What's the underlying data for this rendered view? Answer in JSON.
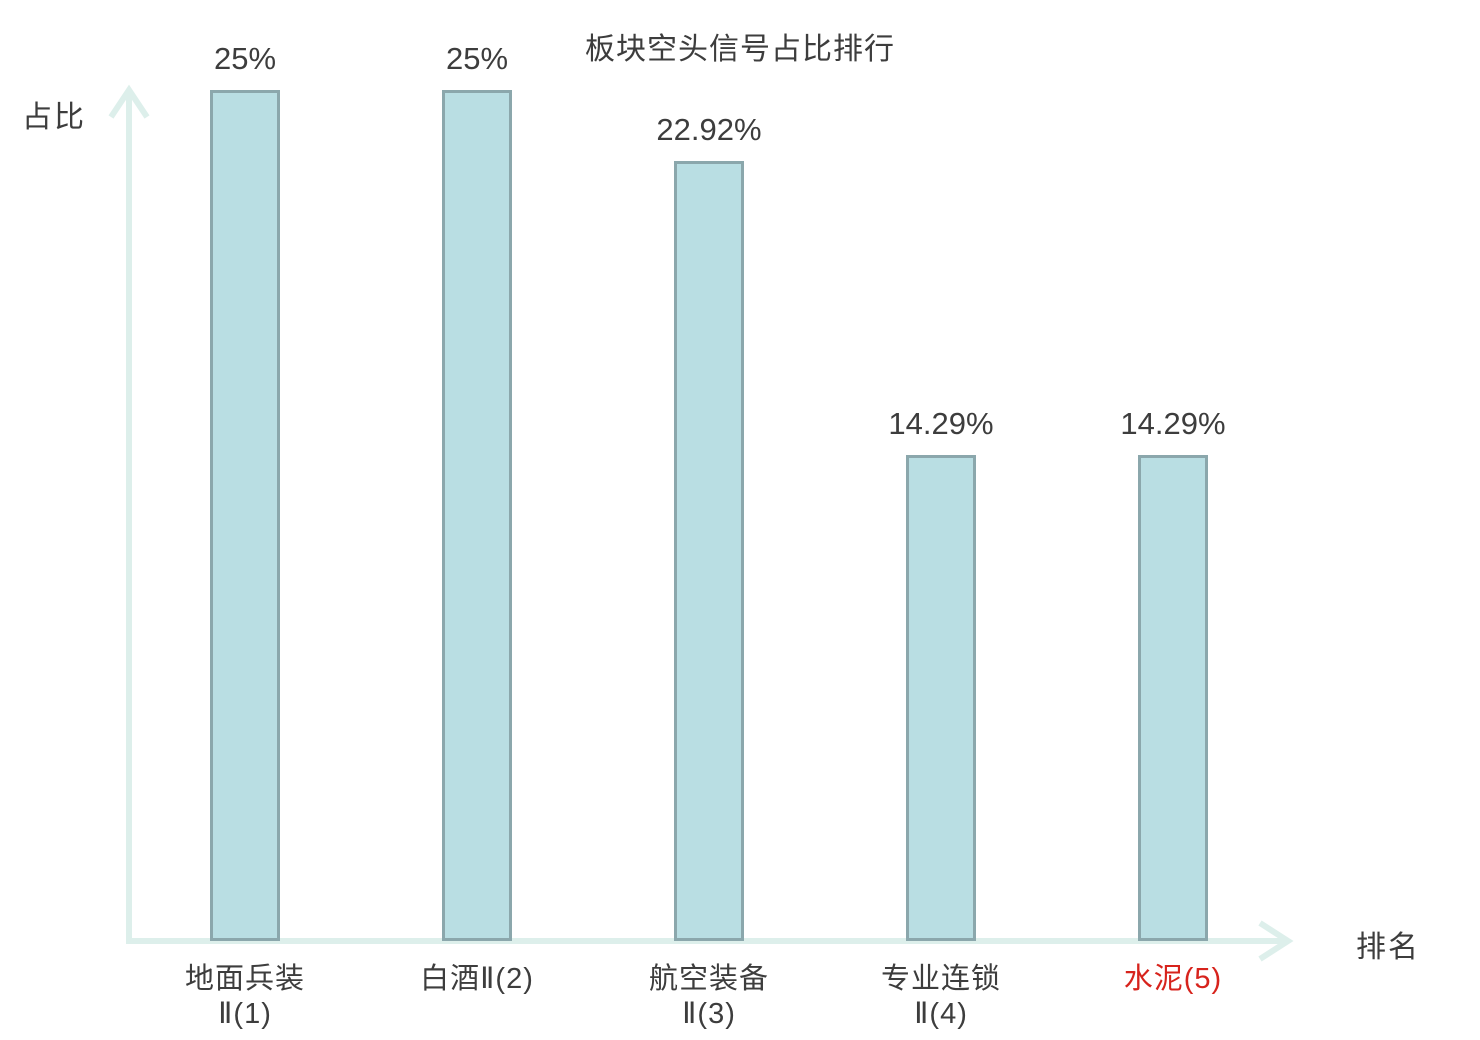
{
  "title": "板块空头信号占比排行",
  "y_axis_label": "占比",
  "x_axis_label": "排名",
  "colors": {
    "bar_fill": "#b9dee3",
    "bar_border": "#8ba7ac",
    "axis": "#ddefeb",
    "text": "#3d3d3d",
    "highlight": "#d7231c"
  },
  "chart_data": {
    "type": "bar",
    "title": "板块空头信号占比排行",
    "xlabel": "排名",
    "ylabel": "占比",
    "categories": [
      "地面兵装Ⅱ(1)",
      "白酒Ⅱ(2)",
      "航空装备Ⅱ(3)",
      "专业连锁Ⅱ(4)",
      "水泥(5)"
    ],
    "category_lines": [
      [
        "地面兵装",
        "Ⅱ(1)"
      ],
      [
        "白酒Ⅱ(2)"
      ],
      [
        "航空装备",
        "Ⅱ(3)"
      ],
      [
        "专业连锁",
        "Ⅱ(4)"
      ],
      [
        "水泥(5)"
      ]
    ],
    "values": [
      25,
      25,
      22.92,
      14.29,
      14.29
    ],
    "value_labels": [
      "25%",
      "25%",
      "22.92%",
      "14.29%",
      "14.29%"
    ],
    "highlighted_category_index": 4,
    "ylim": [
      0,
      25
    ],
    "grid": false,
    "legend": false
  }
}
